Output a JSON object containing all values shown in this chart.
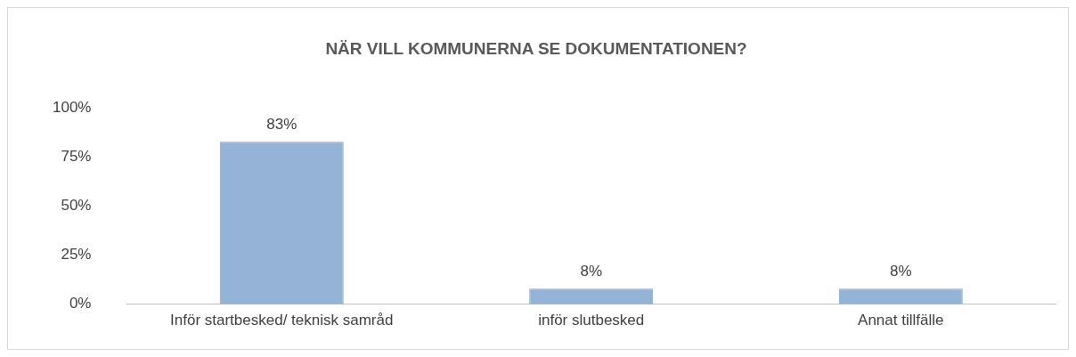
{
  "chart_data": {
    "type": "bar",
    "title": "NÄR VILL KOMMUNERNA SE DOKUMENTATIONEN?",
    "categories": [
      "Inför startbesked/ teknisk samråd",
      "inför slutbesked",
      "Annat tillfälle"
    ],
    "values": [
      83,
      8,
      8
    ],
    "value_labels": [
      "83%",
      "8%",
      "8%"
    ],
    "color": "#95b3d7",
    "ylim": [
      0,
      100
    ],
    "yticks": [
      {
        "value": 0,
        "label": "0%"
      },
      {
        "value": 25,
        "label": "25%"
      },
      {
        "value": 50,
        "label": "50%"
      },
      {
        "value": 75,
        "label": "75%"
      },
      {
        "value": 100,
        "label": "100%"
      }
    ],
    "grid": false,
    "legend": false
  }
}
